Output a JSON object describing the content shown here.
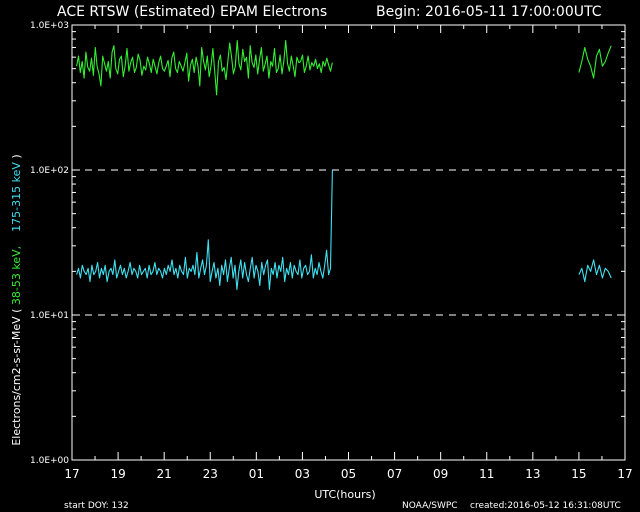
{
  "header": {
    "title": "ACE RTSW (Estimated) EPAM Electrons",
    "begin": "Begin: 2016-05-11 17:00:00UTC"
  },
  "footer": {
    "start_doy": "start DOY:  132",
    "source": "NOAA/SWPC",
    "created": "created:2016-05-12 16:31:08UTC"
  },
  "chart_data": {
    "type": "line",
    "title": "ACE RTSW (Estimated) EPAM Electrons",
    "subtitle": "Begin: 2016-05-11 17:00:00UTC",
    "xlabel": "UTC(hours)",
    "ylabel": {
      "prefix": "Electrons/cm2-s-sr-MeV  (",
      "series1": "38-53 keV,",
      "series2": "175-315 keV",
      "suffix": ")"
    },
    "y_scale": "log",
    "ylim": [
      1,
      1000
    ],
    "y_tick_labels": [
      "1.0E+00",
      "1.0E+01",
      "1.0E+02",
      "1.0E+03"
    ],
    "xlim": [
      0,
      24
    ],
    "x_tick_labels": [
      "17",
      "19",
      "21",
      "23",
      "01",
      "03",
      "05",
      "07",
      "09",
      "11",
      "13",
      "15",
      "17"
    ],
    "reference_lines_y": [
      10,
      100
    ],
    "grid": false,
    "legend": "none",
    "colors": {
      "series1": "#33ee33",
      "series2": "#40e0f0",
      "axes": "#ffffff",
      "background": "#000000"
    },
    "series": [
      {
        "color": "#33ee33",
        "segments": [
          {
            "x_start": 0.2,
            "x_end": 11.3,
            "values": [
              520,
              610,
              470,
              560,
              430,
              650,
              510,
              480,
              590,
              450,
              700,
              520,
              460,
              380,
              610,
              540,
              480,
              560,
              430,
              650,
              720,
              500,
              460,
              580,
              610,
              440,
              520,
              690,
              480,
              550,
              600,
              470,
              510,
              630,
              570,
              450,
              520,
              490,
              600,
              540,
              470,
              580,
              520,
              460,
              550,
              610,
              500,
              480,
              520,
              570,
              440,
              590,
              650,
              500,
              470,
              560,
              520,
              480,
              550,
              640,
              410,
              530,
              580,
              470,
              600,
              520,
              380,
              700,
              560,
              490,
              610,
              440,
              520,
              690,
              470,
              330,
              560,
              620,
              480,
              510,
              420,
              560,
              750,
              600,
              460,
              520,
              780,
              540,
              490,
              680,
              560,
              600,
              430,
              720,
              550,
              510,
              620,
              460,
              580,
              700,
              480,
              540,
              610,
              430,
              560,
              520,
              690,
              470,
              500,
              620,
              460,
              560,
              780,
              540,
              480,
              610,
              520,
              440,
              600,
              550,
              560,
              620,
              470,
              520,
              610,
              490,
              550,
              520,
              580,
              500,
              540,
              470,
              560,
              520,
              590,
              530,
              480,
              550
            ]
          },
          {
            "x_start": 22.0,
            "x_end": 23.4,
            "values": [
              470,
              560,
              700,
              580,
              520,
              430,
              610,
              680,
              520,
              560,
              640,
              720
            ]
          }
        ]
      },
      {
        "color": "#40e0f0",
        "segments": [
          {
            "x_start": 0.2,
            "x_end": 11.3,
            "values": [
              19,
              21,
              18,
              22,
              20,
              19,
              21,
              17,
              22,
              19,
              20,
              23,
              18,
              21,
              19,
              22,
              17,
              20,
              21,
              19,
              24,
              18,
              20,
              22,
              19,
              21,
              18,
              20,
              23,
              19,
              21,
              20,
              18,
              22,
              19,
              20,
              21,
              18,
              22,
              19,
              20,
              23,
              19,
              21,
              20,
              18,
              21,
              19,
              22,
              20,
              24,
              19,
              21,
              18,
              22,
              20,
              19,
              25,
              18,
              21,
              20,
              22,
              19,
              27,
              18,
              21,
              24,
              19,
              22,
              33,
              17,
              20,
              23,
              18,
              21,
              16,
              22,
              19,
              24,
              17,
              21,
              25,
              18,
              22,
              15,
              20,
              24,
              18,
              23,
              19,
              17,
              21,
              25,
              18,
              22,
              20,
              16,
              23,
              19,
              22,
              24,
              15,
              21,
              19,
              23,
              18,
              22,
              20,
              25,
              17,
              21,
              19,
              23,
              18,
              22,
              20,
              19,
              24,
              18,
              21,
              22,
              19,
              20,
              26,
              18,
              21,
              19,
              23,
              20,
              18,
              22,
              28,
              19,
              21,
              100
            ]
          },
          {
            "x_start": 22.0,
            "x_end": 23.4,
            "values": [
              19,
              21,
              17,
              22,
              20,
              24,
              19,
              22,
              18,
              21,
              20,
              18
            ]
          }
        ]
      }
    ]
  }
}
